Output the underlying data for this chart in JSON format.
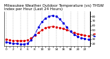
{
  "title": "Milwaukee Weather Outdoor Temperature (vs) THSW Index per Hour (Last 24 Hours)",
  "hours": [
    0,
    1,
    2,
    3,
    4,
    5,
    6,
    7,
    8,
    9,
    10,
    11,
    12,
    13,
    14,
    15,
    16,
    17,
    18,
    19,
    20,
    21,
    22,
    23
  ],
  "temp": [
    30,
    28,
    27,
    27,
    26,
    27,
    28,
    32,
    38,
    44,
    50,
    55,
    57,
    58,
    57,
    55,
    53,
    50,
    47,
    44,
    42,
    40,
    38,
    37
  ],
  "thsw": [
    24,
    22,
    20,
    20,
    19,
    19,
    21,
    28,
    40,
    56,
    68,
    76,
    80,
    82,
    80,
    74,
    65,
    56,
    47,
    40,
    36,
    33,
    31,
    29
  ],
  "temp_color": "#dd0000",
  "thsw_color": "#0000dd",
  "background_color": "#ffffff",
  "grid_color": "#888888",
  "ylim": [
    15,
    90
  ],
  "ytick_values": [
    20,
    30,
    40,
    50,
    60,
    70,
    80
  ],
  "ytick_labels": [
    "20",
    "30",
    "40",
    "50",
    "60",
    "70",
    "80"
  ],
  "title_fontsize": 4.0,
  "tick_fontsize": 3.2,
  "line_width": 0.7,
  "marker_size": 1.5
}
